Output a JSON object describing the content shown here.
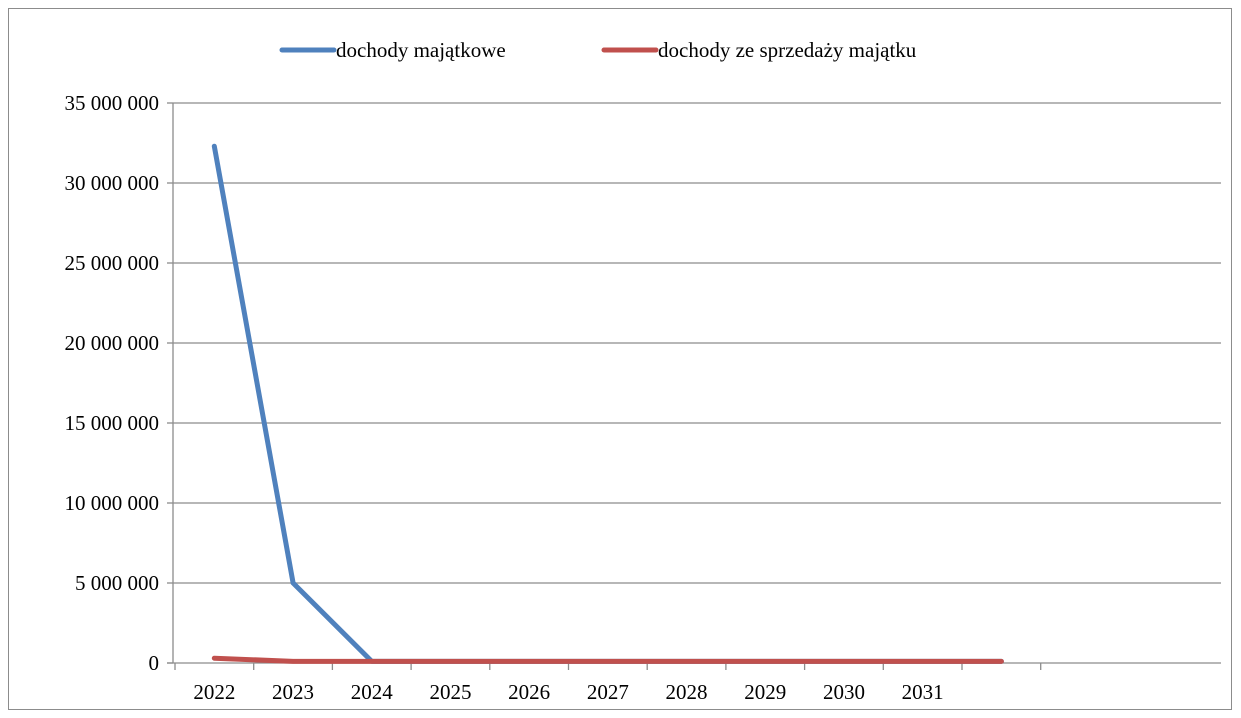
{
  "chart_data": {
    "type": "line",
    "title": "",
    "xlabel": "",
    "ylabel": "",
    "categories": [
      "2022",
      "2023",
      "2024",
      "2025",
      "2026",
      "2027",
      "2028",
      "2029",
      "2030",
      "2031"
    ],
    "x": [
      "2022",
      "2023",
      "2024",
      "2025",
      "2026",
      "2027",
      "2028",
      "2029",
      "2030",
      "2031",
      ""
    ],
    "ylim": [
      0,
      35000000
    ],
    "yticks": [
      0,
      5000000,
      10000000,
      15000000,
      20000000,
      25000000,
      30000000,
      35000000
    ],
    "ytick_labels": [
      "0",
      "5 000 000",
      "10 000 000",
      "15 000 000",
      "20 000 000",
      "25 000 000",
      "30 000 000",
      "35 000 000"
    ],
    "grid": true,
    "legend_position": "top",
    "series": [
      {
        "name": "dochody majątkowe",
        "color": "#4f81bd",
        "values": [
          32300000,
          5000000,
          100000,
          100000,
          100000,
          100000,
          100000,
          100000,
          100000,
          100000,
          100000
        ]
      },
      {
        "name": "dochody ze sprzedaży majątku",
        "color": "#c0504d",
        "values": [
          300000,
          100000,
          100000,
          100000,
          100000,
          100000,
          100000,
          100000,
          100000,
          100000,
          100000
        ]
      }
    ]
  }
}
